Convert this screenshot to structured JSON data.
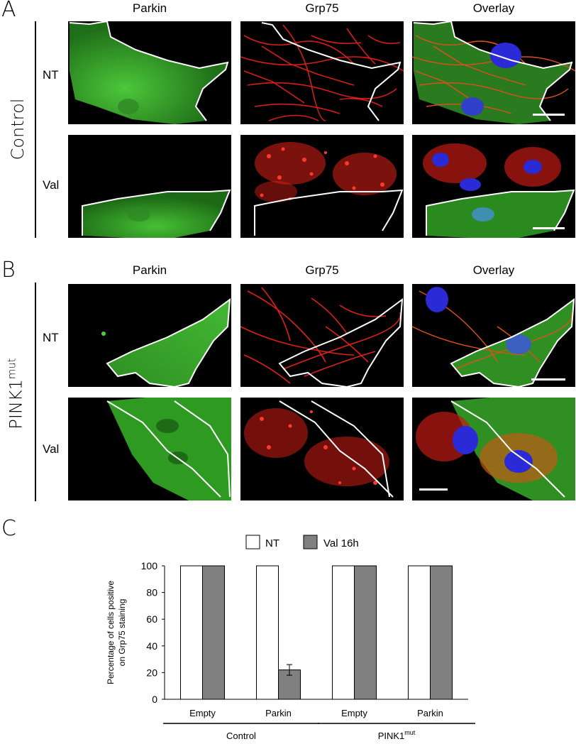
{
  "panels": {
    "A": {
      "letter": "A",
      "group": "Control"
    },
    "B": {
      "letter": "B",
      "group": "PINK1",
      "group_sup": "mut"
    },
    "C": {
      "letter": "C"
    }
  },
  "columns": [
    "Parkin",
    "Grp75",
    "Overlay"
  ],
  "rows": [
    "NT",
    "Val"
  ],
  "colors": {
    "parkin": "#3cb52e",
    "grp75": "#e0201a",
    "dapi": "#2a2ad6",
    "outline": "#ffffff",
    "bar_val": "#808080"
  },
  "chart_data": {
    "type": "bar",
    "categories": [
      "Empty",
      "Parkin",
      "Empty",
      "Parkin"
    ],
    "groups": [
      {
        "label": "Control",
        "label_sup": ""
      },
      {
        "label": "PINK1",
        "label_sup": "mut"
      }
    ],
    "series": [
      {
        "name": "NT",
        "values": [
          100,
          100,
          100,
          100
        ],
        "color": "#ffffff"
      },
      {
        "name": "Val 16h",
        "values": [
          100,
          22,
          100,
          100
        ],
        "color": "#808080",
        "errors": [
          0,
          4,
          0,
          0
        ]
      }
    ],
    "ylabel_line1": "Percentage of cells positive",
    "ylabel_line2": "on Grp75 staining",
    "ylim": [
      0,
      100
    ],
    "yticks": [
      0,
      20,
      40,
      60,
      80,
      100
    ],
    "legend": "top"
  }
}
